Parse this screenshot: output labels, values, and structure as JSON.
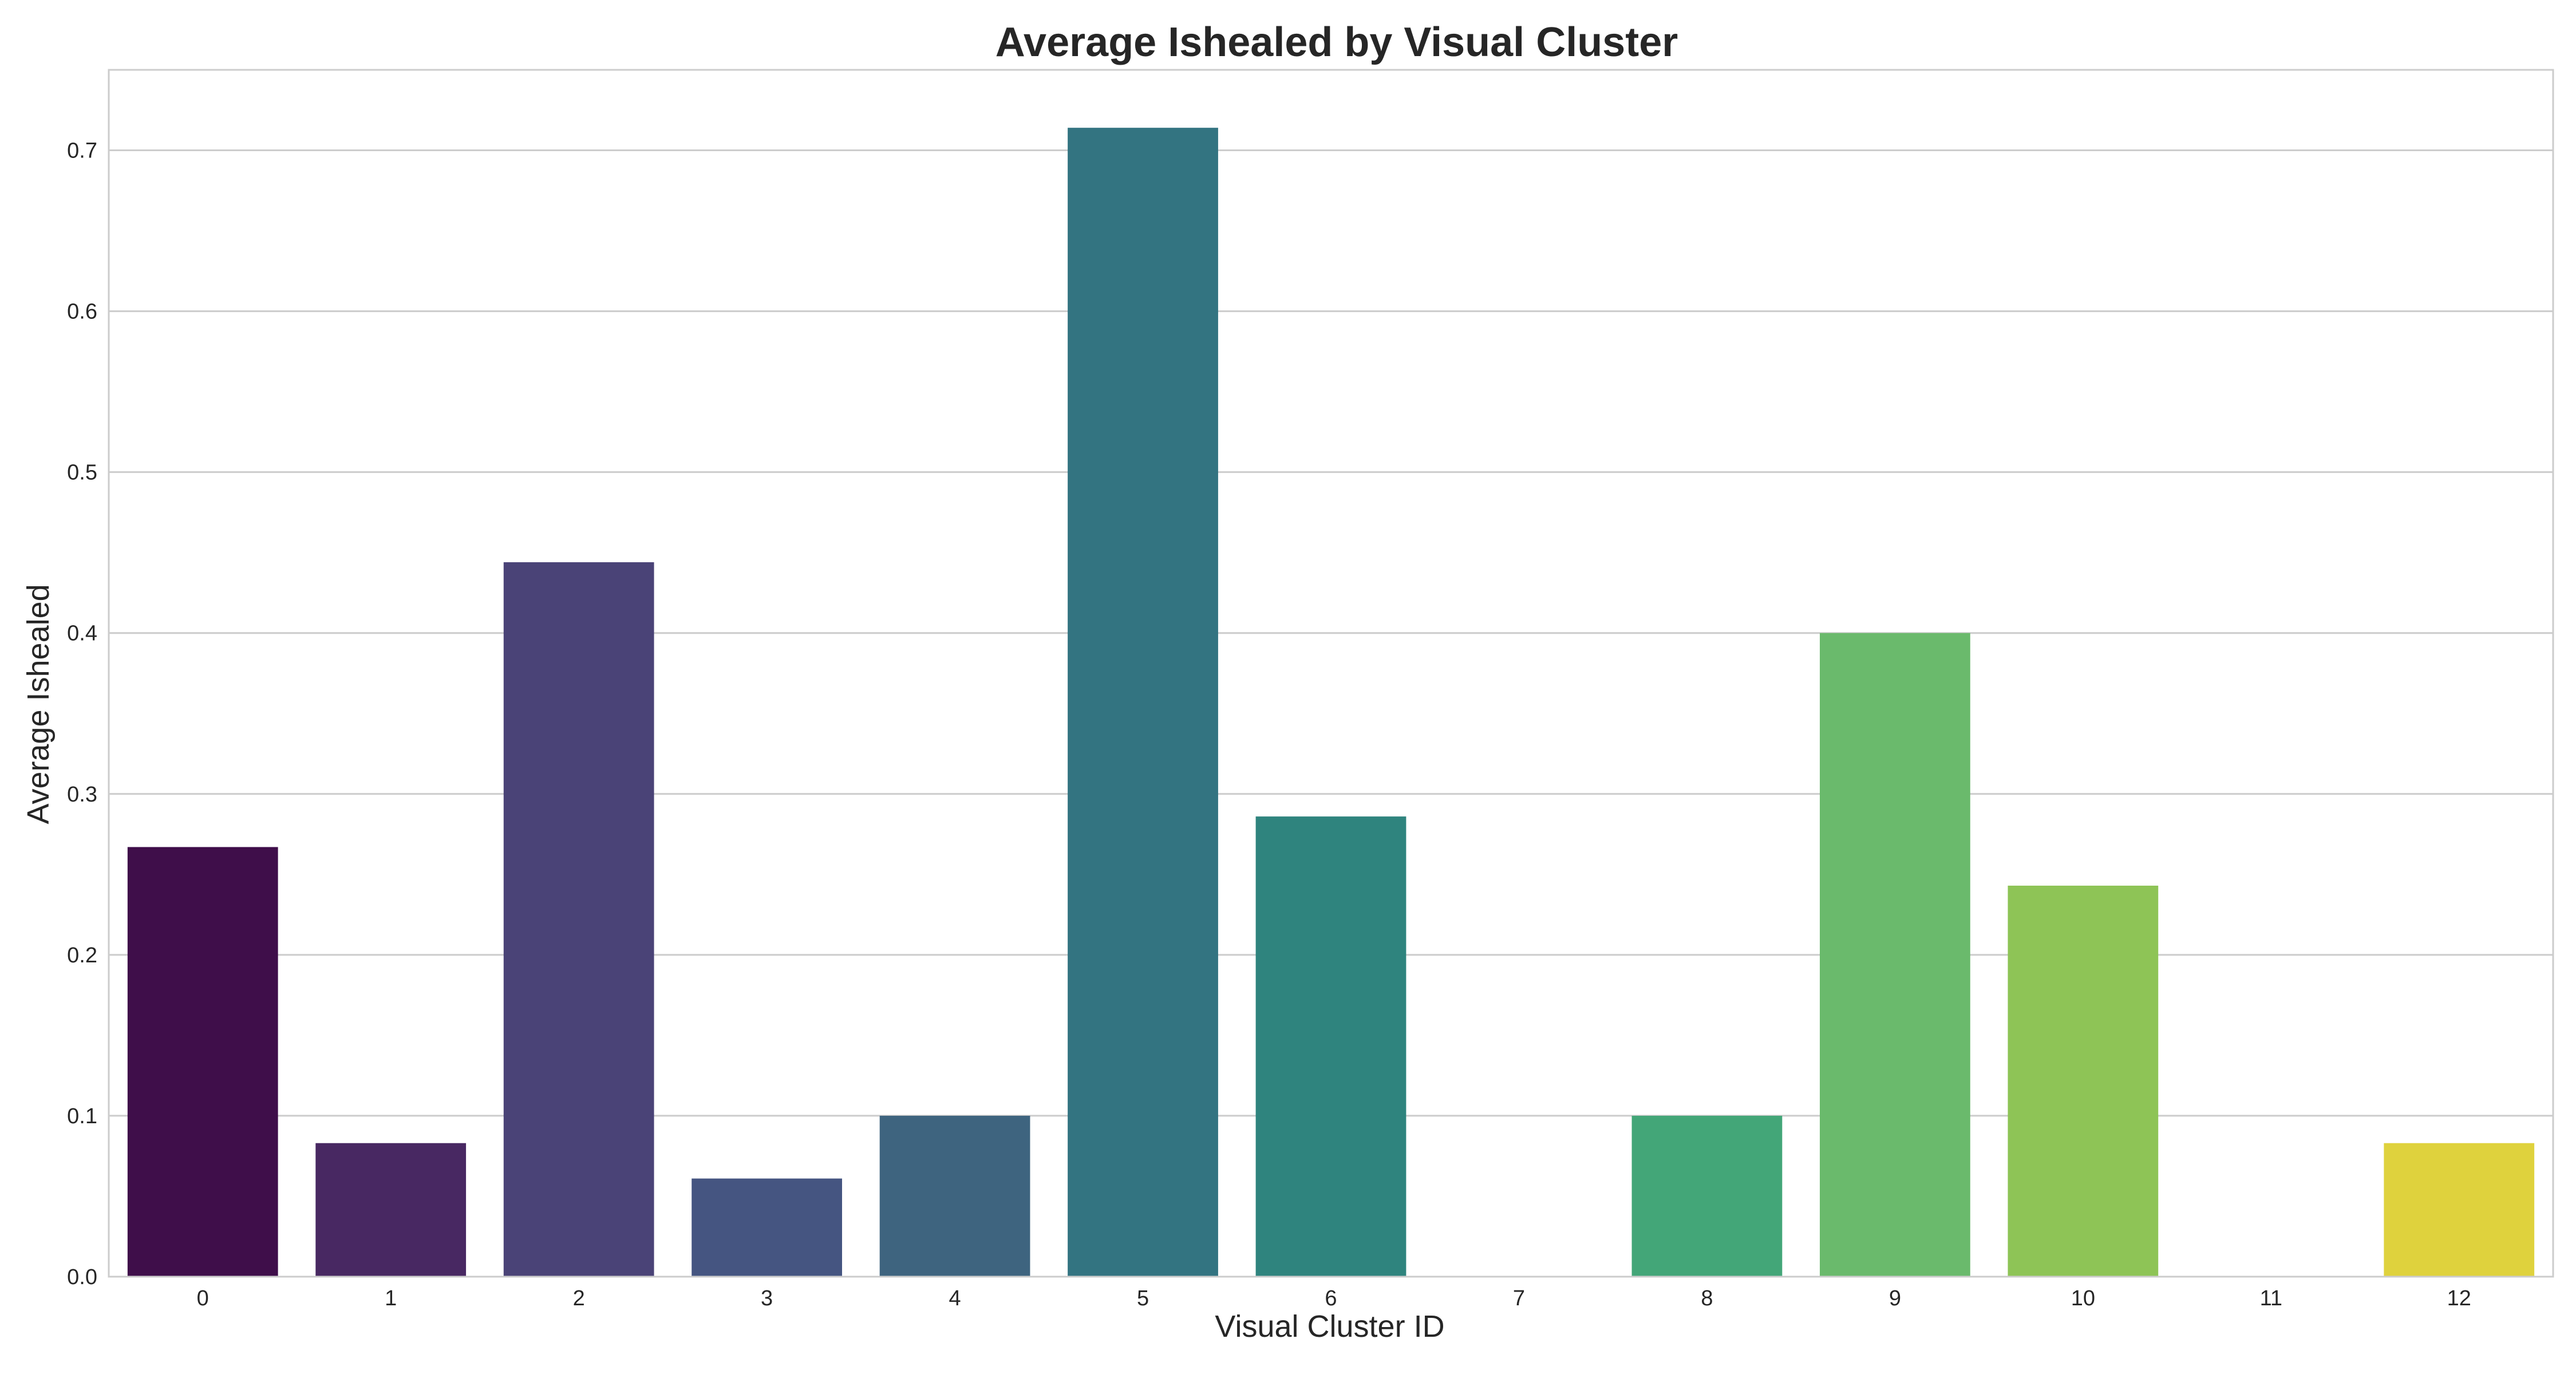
{
  "chart_data": {
    "type": "bar",
    "title": "Average Ishealed by Visual Cluster",
    "xlabel": "Visual Cluster ID",
    "ylabel": "Average Ishealed",
    "categories": [
      "0",
      "1",
      "2",
      "3",
      "4",
      "5",
      "6",
      "7",
      "8",
      "9",
      "10",
      "11",
      "12"
    ],
    "values": [
      0.267,
      0.083,
      0.444,
      0.061,
      0.1,
      0.714,
      0.286,
      0.0,
      0.1,
      0.4,
      0.243,
      0.0,
      0.083
    ],
    "ylim": [
      0,
      0.75
    ],
    "yticks": [
      0.0,
      0.1,
      0.2,
      0.3,
      0.4,
      0.5,
      0.6,
      0.7
    ],
    "ytick_labels": [
      "0.0",
      "0.1",
      "0.2",
      "0.3",
      "0.4",
      "0.5",
      "0.6",
      "0.7"
    ],
    "grid": "horizontal",
    "colors": [
      "#440154",
      "#482475",
      "#414487",
      "#355f8d",
      "#2a788e",
      "#21918c",
      "#22a884",
      "#44bf70",
      "#7ad151",
      "#bddf26",
      "#fde725",
      "#5ec962",
      "#9fda3a"
    ],
    "bar_colors": [
      "#3f0e4a",
      "#482862",
      "#4a4377",
      "#455581",
      "#3e647f",
      "#337481",
      "#2f847e",
      "#3aa176",
      "#43a678",
      "#6aba6c",
      "#8ec456",
      "#7ad151",
      "#dfd23d"
    ]
  }
}
